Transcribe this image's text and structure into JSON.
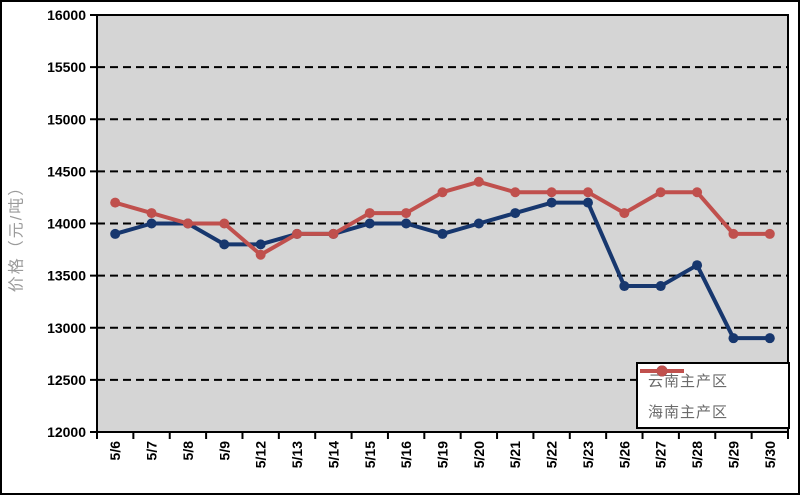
{
  "chart_data": {
    "type": "line",
    "title": "",
    "xlabel": "",
    "ylabel": "价格（元/吨）",
    "ylim": [
      12000,
      16000
    ],
    "y_ticks": [
      12000,
      12500,
      13000,
      13500,
      14000,
      14500,
      15000,
      15500,
      16000
    ],
    "grid": "horizontal-dashed",
    "legend_position": "bottom-right",
    "plot_bg_color": "#d5d5d5",
    "frame_color": "#000000",
    "categories": [
      "5/6",
      "5/7",
      "5/8",
      "5/9",
      "5/12",
      "5/13",
      "5/14",
      "5/15",
      "5/16",
      "5/19",
      "5/20",
      "5/21",
      "5/22",
      "5/23",
      "5/26",
      "5/27",
      "5/28",
      "5/29",
      "5/30"
    ],
    "series": [
      {
        "name": "云南主产区",
        "color": "#17376e",
        "marker": "circle",
        "values": [
          13900,
          14000,
          14000,
          13800,
          13800,
          13900,
          13900,
          14000,
          14000,
          13900,
          14000,
          14100,
          14200,
          14200,
          13400,
          13400,
          13600,
          12900,
          12900
        ]
      },
      {
        "name": "海南主产区",
        "color": "#c0504d",
        "marker": "circle",
        "values": [
          14200,
          14100,
          14000,
          14000,
          13700,
          13900,
          13900,
          14100,
          14100,
          14300,
          14400,
          14300,
          14300,
          14300,
          14100,
          14300,
          14300,
          13900,
          13900
        ]
      }
    ]
  }
}
